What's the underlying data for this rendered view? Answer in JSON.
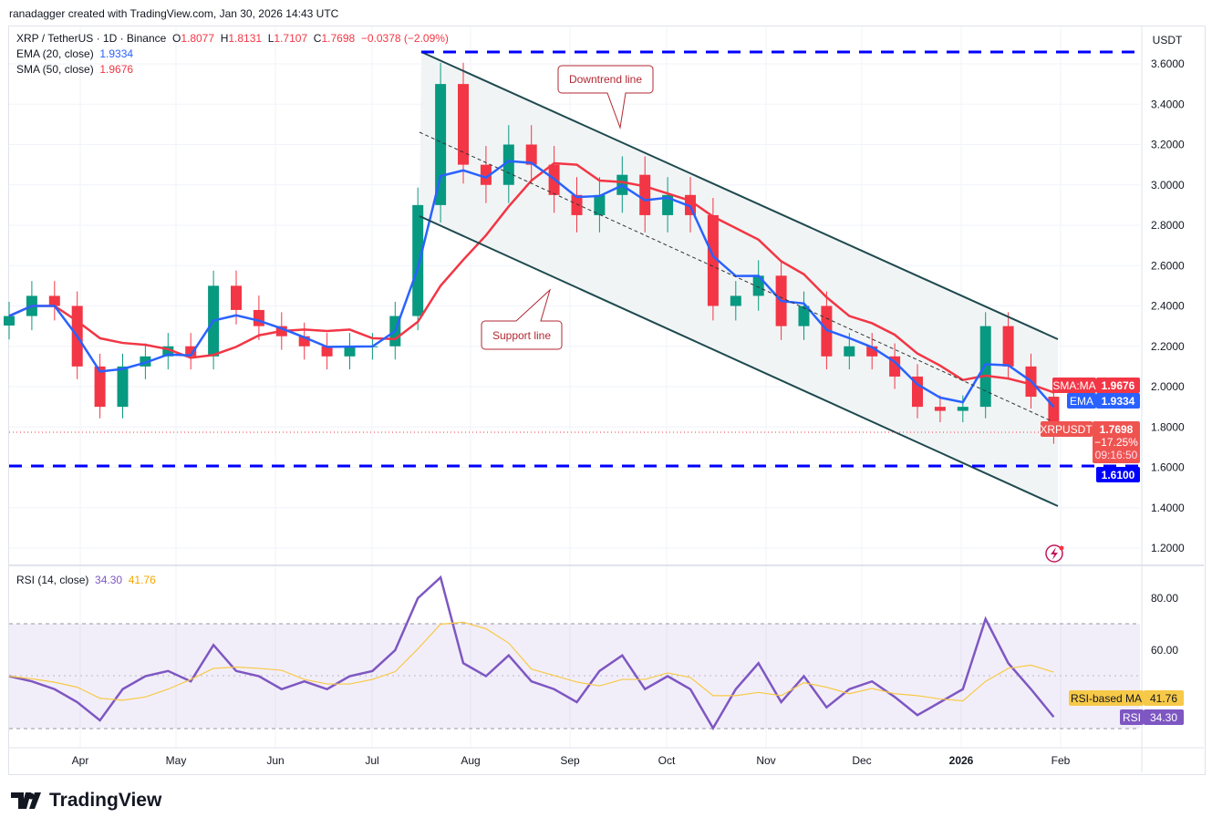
{
  "credit": "ranadagger created with TradingView.com, Jan 30, 2026 14:43 UTC",
  "symbol": {
    "title": "XRP / TetherUS · 1D · Binance",
    "o": "O",
    "o_val": "1.8077",
    "h": "H",
    "h_val": "1.8131",
    "l": "L",
    "l_val": "1.7107",
    "c": "C",
    "c_val": "1.7698",
    "change": "−0.0378 (−2.09%)"
  },
  "ema_legend": {
    "label": "EMA (20, close)",
    "value": "1.9334"
  },
  "sma_legend": {
    "label": "SMA (50, close)",
    "value": "1.9676"
  },
  "rsi_legend": {
    "label": "RSI (14, close)",
    "value": "34.30",
    "ma_value": "41.76"
  },
  "currency": "USDT",
  "brand": "TradingView",
  "colors": {
    "up": "#089981",
    "down": "#f23645",
    "ema": "#2962ff",
    "sma": "#f23645",
    "rsi": "#7e57c2",
    "rsi_ma": "#f7c948",
    "level": "#0000ff",
    "channel": "#1e4a4f"
  },
  "badges": {
    "sma_label": "SMA:MA",
    "sma_value": "1.9676",
    "ema_label": "EMA",
    "ema_value": "1.9334",
    "sym_label": "XRPUSDT",
    "price": "1.7698",
    "pct": "−17.25%",
    "timer": "09:16:50",
    "level": "1.6100",
    "rsi_ma_label": "RSI-based MA",
    "rsi_ma_value": "41.76",
    "rsi_label": "RSI",
    "rsi_value": "34.30"
  },
  "annotations": {
    "downtrend": "Downtrend line",
    "support": "Support line"
  },
  "chart_data": {
    "type": "candlestick",
    "price_ticks": [
      "3.6000",
      "3.4000",
      "3.2000",
      "3.0000",
      "2.8000",
      "2.6000",
      "2.4000",
      "2.2000",
      "2.0000",
      "1.8000",
      "1.6000",
      "1.4000",
      "1.2000"
    ],
    "ylim": [
      1.2,
      3.6
    ],
    "x_ticks": [
      "Apr",
      "May",
      "Jun",
      "Jul",
      "Aug",
      "Sep",
      "Oct",
      "Nov",
      "Dec",
      "2026",
      "Feb"
    ],
    "weekly_close": [
      2.35,
      2.45,
      2.4,
      2.1,
      1.9,
      2.1,
      2.15,
      2.2,
      2.15,
      2.5,
      2.38,
      2.3,
      2.25,
      2.2,
      2.15,
      2.2,
      2.2,
      2.35,
      2.9,
      3.5,
      3.1,
      3.0,
      3.2,
      3.1,
      2.95,
      2.85,
      2.95,
      3.05,
      2.85,
      2.95,
      2.85,
      2.4,
      2.45,
      2.55,
      2.3,
      2.4,
      2.15,
      2.2,
      2.15,
      2.05,
      1.9,
      1.88,
      1.9,
      2.3,
      2.1,
      1.95,
      1.77
    ],
    "horizontal_levels": [
      3.62,
      1.61
    ],
    "rsi_ticks": [
      "80.00",
      "60.00"
    ],
    "rsi_bands": [
      70,
      30
    ],
    "rsi": [
      50,
      48,
      45,
      40,
      33,
      45,
      50,
      52,
      48,
      62,
      52,
      50,
      45,
      48,
      45,
      50,
      52,
      60,
      80,
      88,
      55,
      50,
      58,
      48,
      45,
      40,
      52,
      58,
      45,
      50,
      45,
      30,
      45,
      55,
      40,
      50,
      38,
      45,
      48,
      42,
      35,
      40,
      45,
      72,
      55,
      45,
      34.3
    ]
  }
}
